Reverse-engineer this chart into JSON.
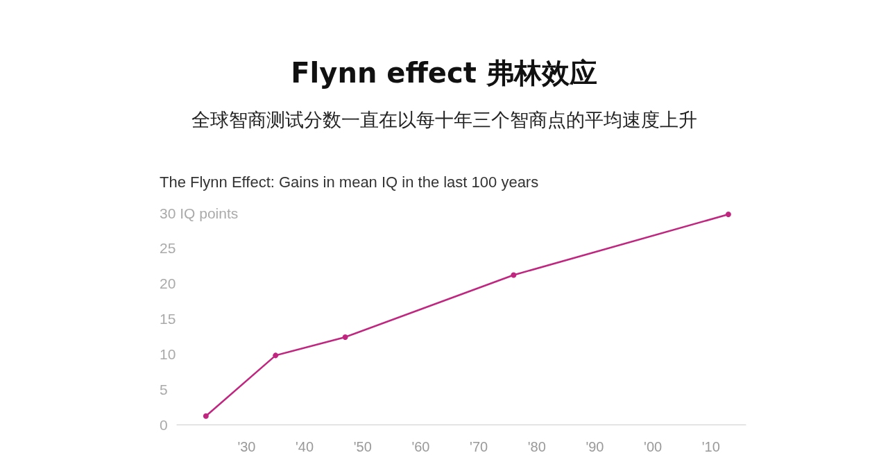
{
  "chart_data": {
    "type": "line",
    "title": "Flynn effect 弗林效应",
    "subtitle": "全球智商测试分数一直在以每十年三个智商点的平均速度上升",
    "annotations": [
      "The Flynn Effect: Gains in mean IQ in the last 100 years"
    ],
    "x": [
      1923,
      1935,
      1947,
      1976,
      2013
    ],
    "series": [
      {
        "color": "#c0267f",
        "values": [
          1.2,
          9.8,
          12.4,
          21.2,
          29.8
        ]
      }
    ],
    "xlim": [
      1918,
      2016
    ],
    "xticks": [
      {
        "value": 1930,
        "label": "'30"
      },
      {
        "value": 1940,
        "label": "'40"
      },
      {
        "value": 1950,
        "label": "'50"
      },
      {
        "value": 1960,
        "label": "'60"
      },
      {
        "value": 1970,
        "label": "'70"
      },
      {
        "value": 1980,
        "label": "'80"
      },
      {
        "value": 1990,
        "label": "'90"
      },
      {
        "value": 2000,
        "label": "'00"
      },
      {
        "value": 2010,
        "label": "'10"
      }
    ],
    "ylim": [
      0,
      30
    ],
    "yticks": [
      0,
      5,
      10,
      15,
      20,
      25,
      {
        "value": 30,
        "label": "30 IQ points"
      }
    ],
    "grid": false,
    "marker": "circle",
    "line_style": "solid"
  }
}
